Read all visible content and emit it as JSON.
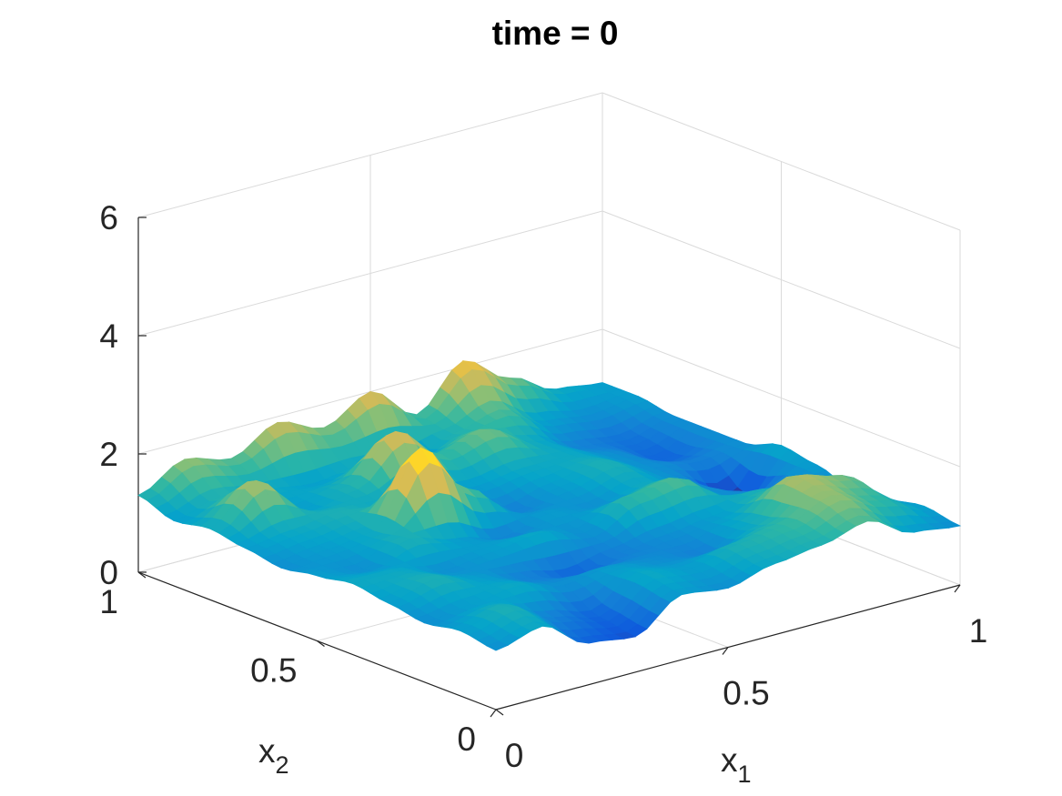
{
  "chart_data": {
    "type": "surface",
    "title": "time = 0",
    "xlabel": {
      "base": "x",
      "sub": "1"
    },
    "ylabel": {
      "base": "x",
      "sub": "2"
    },
    "zlabel": "",
    "xlim": [
      0,
      1
    ],
    "ylim": [
      0,
      1
    ],
    "zlim": [
      0,
      6
    ],
    "x_ticks": [
      "0",
      "0.5",
      "1"
    ],
    "y_ticks": [
      "0",
      "0.5",
      "1"
    ],
    "z_ticks": [
      "0",
      "2",
      "4",
      "6"
    ],
    "grid": true,
    "colormap": "parula",
    "colormap_stops": [
      "#352a87",
      "#0f5cdd",
      "#1481d6",
      "#06a4ca",
      "#2eb7a4",
      "#87bf77",
      "#d1bb59",
      "#fec832",
      "#f9fb0e"
    ],
    "surface_grid": {
      "x": [
        0,
        0.1,
        0.2,
        0.3,
        0.4,
        0.5,
        0.6,
        0.7,
        0.8,
        0.9,
        1.0
      ],
      "y": [
        0,
        0.1,
        0.2,
        0.3,
        0.4,
        0.5,
        0.6,
        0.7,
        0.8,
        0.9,
        1.0
      ],
      "z_rows_by_y": [
        [
          1.0,
          1.2,
          0.7,
          0.6,
          1.1,
          1.0,
          1.2,
          1.3,
          1.5,
          1.1,
          1.0
        ],
        [
          1.1,
          1.3,
          0.9,
          0.7,
          1.2,
          1.1,
          1.3,
          1.4,
          1.7,
          1.4,
          1.1
        ],
        [
          1.0,
          1.1,
          1.2,
          1.0,
          1.1,
          1.0,
          0.9,
          1.2,
          1.8,
          1.6,
          1.0
        ],
        [
          1.1,
          1.3,
          1.1,
          0.9,
          0.7,
          0.9,
          1.0,
          1.1,
          1.3,
          1.2,
          0.9
        ],
        [
          1.2,
          1.2,
          1.0,
          1.1,
          1.2,
          1.0,
          1.4,
          1.5,
          1.0,
          0.9,
          1.1
        ],
        [
          1.1,
          1.0,
          1.3,
          1.1,
          0.9,
          1.1,
          1.0,
          1.2,
          1.0,
          0.4,
          1.2
        ],
        [
          1.0,
          1.1,
          1.2,
          2.4,
          1.5,
          0.9,
          1.1,
          1.3,
          1.0,
          0.9,
          1.0
        ],
        [
          1.1,
          1.2,
          1.3,
          1.2,
          1.1,
          1.1,
          1.2,
          1.2,
          1.0,
          0.7,
          1.0
        ],
        [
          1.2,
          1.8,
          1.1,
          1.3,
          2.0,
          1.4,
          1.6,
          1.2,
          0.9,
          0.8,
          1.0
        ],
        [
          1.1,
          1.3,
          1.2,
          1.1,
          1.2,
          1.0,
          1.3,
          1.5,
          1.1,
          1.0,
          1.1
        ],
        [
          1.3,
          1.7,
          1.5,
          1.9,
          1.6,
          2.0,
          1.4,
          2.1,
          1.6,
          1.2,
          1.1
        ]
      ]
    }
  }
}
